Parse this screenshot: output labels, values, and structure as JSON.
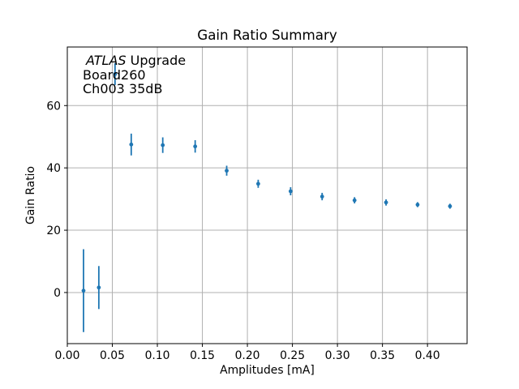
{
  "chart_data": {
    "type": "scatter",
    "title": "Gain Ratio Summary",
    "xlabel": "Amplitudes [mA]",
    "ylabel": "Gain Ratio",
    "annotation": {
      "line1_italic": "ATLAS",
      "line1_rest": " Upgrade",
      "line2": "Board260",
      "line3": "Ch003 35dB"
    },
    "xlim": [
      0.0,
      0.444
    ],
    "ylim": [
      -16.4,
      78.8
    ],
    "xticks": [
      0.0,
      0.05,
      0.1,
      0.15,
      0.2,
      0.25,
      0.3,
      0.35,
      0.4
    ],
    "xtick_labels": [
      "0.00",
      "0.05",
      "0.10",
      "0.15",
      "0.20",
      "0.25",
      "0.30",
      "0.35",
      "0.40"
    ],
    "yticks": [
      0,
      20,
      40,
      60
    ],
    "ytick_labels": [
      "0",
      "20",
      "40",
      "60"
    ],
    "grid": true,
    "legend": "none",
    "series": [
      {
        "name": "gain-ratio-vs-amplitude",
        "marker": "circle",
        "x": [
          0.018,
          0.035,
          0.053,
          0.071,
          0.106,
          0.142,
          0.177,
          0.212,
          0.248,
          0.283,
          0.319,
          0.354,
          0.389,
          0.425
        ],
        "y": [
          0.6,
          1.6,
          70.1,
          47.5,
          47.3,
          46.9,
          39.1,
          34.9,
          32.5,
          30.8,
          29.6,
          28.9,
          28.2,
          27.7
        ],
        "yerr": [
          13.3,
          6.9,
          3.5,
          3.5,
          2.5,
          2.0,
          1.6,
          1.3,
          1.3,
          1.2,
          1.0,
          1.0,
          0.8,
          0.8
        ]
      }
    ],
    "colors": {
      "marker": "#1f77b4",
      "grid": "#b0b0b0",
      "spine": "#000000",
      "text": "#000000",
      "background": "#ffffff"
    }
  }
}
